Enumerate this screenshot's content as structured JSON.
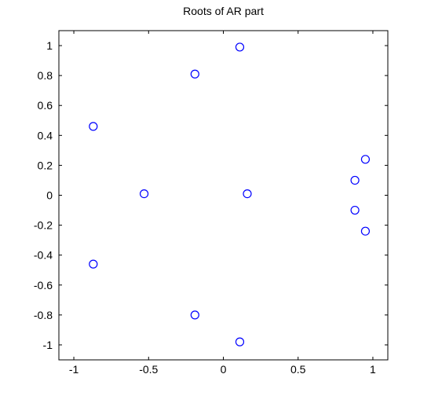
{
  "chart_data": {
    "type": "scatter",
    "title": "Roots of AR part",
    "xlabel": "",
    "ylabel": "",
    "xlim": [
      -1.1,
      1.1
    ],
    "ylim": [
      -1.1,
      1.1
    ],
    "xticks": [
      -1,
      -0.5,
      0,
      0.5,
      1
    ],
    "xtick_labels": [
      "-1",
      "-0.5",
      "0",
      "0.5",
      "1"
    ],
    "yticks": [
      1,
      0.8,
      0.6,
      0.4,
      0.2,
      0,
      -0.2,
      -0.4,
      -0.6,
      -0.8,
      -1
    ],
    "ytick_labels": [
      "1",
      "0.8",
      "0.6",
      "0.4",
      "0.2",
      "0",
      "-0.2",
      "-0.4",
      "-0.6",
      "-0.8",
      "-1"
    ],
    "grid": false,
    "marker": "circle-open",
    "marker_color": "#0000ff",
    "points": [
      {
        "x": 0.11,
        "y": 0.99
      },
      {
        "x": -0.19,
        "y": 0.81
      },
      {
        "x": -0.87,
        "y": 0.46
      },
      {
        "x": 0.95,
        "y": 0.24
      },
      {
        "x": 0.88,
        "y": 0.1
      },
      {
        "x": -0.53,
        "y": 0.01
      },
      {
        "x": 0.16,
        "y": 0.01
      },
      {
        "x": 0.88,
        "y": -0.1
      },
      {
        "x": 0.95,
        "y": -0.24
      },
      {
        "x": -0.87,
        "y": -0.46
      },
      {
        "x": -0.19,
        "y": -0.8
      },
      {
        "x": 0.11,
        "y": -0.98
      }
    ]
  }
}
